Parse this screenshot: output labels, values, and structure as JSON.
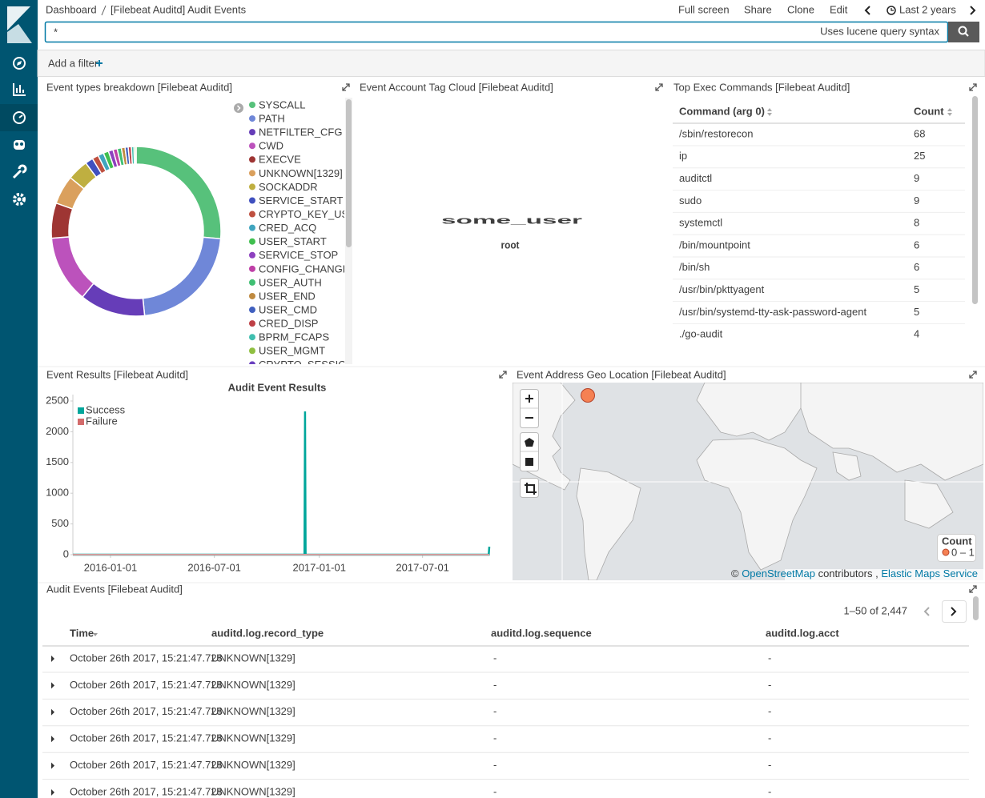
{
  "header": {
    "breadcrumbs": [
      "Dashboard",
      "[Filebeat Auditd] Audit Events"
    ],
    "menu": [
      "Full screen",
      "Share",
      "Clone",
      "Edit"
    ],
    "time_range": "Last 2 years"
  },
  "query": {
    "text": "*",
    "hint": "Uses lucene query syntax"
  },
  "filter_bar": {
    "add_filter": "Add a filter"
  },
  "panels": {
    "event_types": {
      "title": "Event types breakdown [Filebeat Auditd]",
      "chart_data": {
        "type": "pie",
        "donut": true,
        "categories": [
          "SYSCALL",
          "PATH",
          "NETFILTER_CFG",
          "CWD",
          "EXECVE",
          "UNKNOWN[1329]",
          "SOCKADDR",
          "SERVICE_START",
          "CRYPTO_KEY_USER",
          "CRED_ACQ",
          "USER_START",
          "SERVICE_STOP",
          "CONFIG_CHANGE",
          "USER_AUTH",
          "USER_END",
          "USER_CMD",
          "CRED_DISP",
          "BPRM_FCAPS",
          "USER_MGMT",
          "CRYPTO_SESSION"
        ],
        "values": [
          26.4,
          22,
          12.5,
          12.8,
          6.7,
          5.5,
          4,
          1.5,
          1.2,
          1.1,
          1,
          0.9,
          0.8,
          0.8,
          0.7,
          0.6,
          0.6,
          0.5,
          0.3,
          0.1
        ],
        "colors": [
          "#57c17b",
          "#6f87d8",
          "#663db8",
          "#bc52bc",
          "#9e3533",
          "#daa05d",
          "#bfaf40",
          "#4050bf",
          "#bf5040",
          "#40a5bf",
          "#40bf4f",
          "#8d40bf",
          "#bf40a7",
          "#40bf73",
          "#bf8a40",
          "#4060bf",
          "#bf4046",
          "#40bfaf",
          "#8fbf40",
          "#6a40bf"
        ]
      }
    },
    "tag_cloud": {
      "title": "Event Account Tag Cloud [Filebeat Auditd]",
      "tags": [
        "some_user",
        "root"
      ]
    },
    "top_commands": {
      "title": "Top Exec Commands [Filebeat Auditd]",
      "columns": [
        "Command (arg 0)",
        "Count"
      ],
      "rows": [
        [
          "/sbin/restorecon",
          "68"
        ],
        [
          "ip",
          "25"
        ],
        [
          "auditctl",
          "9"
        ],
        [
          "sudo",
          "9"
        ],
        [
          "systemctl",
          "8"
        ],
        [
          "/bin/mountpoint",
          "6"
        ],
        [
          "/bin/sh",
          "6"
        ],
        [
          "/usr/bin/pkttyagent",
          "5"
        ],
        [
          "/usr/bin/systemd-tty-ask-password-agent",
          "5"
        ],
        [
          "./go-audit",
          "4"
        ]
      ]
    },
    "event_results": {
      "title": "Event Results [Filebeat Auditd]",
      "chart_data": {
        "type": "line",
        "title": "Audit Event Results",
        "x": [
          "2015-10-27",
          "2016-12-06",
          "2016-12-07",
          "2016-12-08",
          "2017-10-25",
          "2017-10-26"
        ],
        "series": [
          {
            "name": "Success",
            "color": "#00a69b",
            "values": [
              0,
              0,
              2330,
              0,
              0,
              130
            ]
          },
          {
            "name": "Failure",
            "color": "#d36b6b",
            "values": [
              0,
              0,
              0,
              0,
              0,
              0
            ]
          }
        ],
        "xlim": [
          "2015-10-27",
          "2017-10-26"
        ],
        "xticks": [
          "2016-01-01",
          "2016-07-01",
          "2017-01-01",
          "2017-07-01"
        ],
        "ylim": [
          0,
          2500
        ],
        "yticks": [
          0,
          500,
          1000,
          1500,
          2000,
          2500
        ],
        "legend": "top-left"
      }
    },
    "geo_map": {
      "title": "Event Address Geo Location [Filebeat Auditd]",
      "legend_title": "Count",
      "legend_range": "0 – 1",
      "attribution": [
        "© ",
        "OpenStreetMap",
        " contributors , ",
        "Elastic Maps Service"
      ]
    },
    "audit_events": {
      "title": "Audit Events [Filebeat Auditd]",
      "pagination": "1–50 of 2,447",
      "columns": [
        "Time",
        "auditd.log.record_type",
        "auditd.log.sequence",
        "auditd.log.acct"
      ],
      "rows": [
        [
          "October 26th 2017, 15:21:47.728",
          "UNKNOWN[1329]",
          "-",
          "-"
        ],
        [
          "October 26th 2017, 15:21:47.728",
          "UNKNOWN[1329]",
          "-",
          "-"
        ],
        [
          "October 26th 2017, 15:21:47.728",
          "UNKNOWN[1329]",
          "-",
          "-"
        ],
        [
          "October 26th 2017, 15:21:47.728",
          "UNKNOWN[1329]",
          "-",
          "-"
        ],
        [
          "October 26th 2017, 15:21:47.728",
          "UNKNOWN[1329]",
          "-",
          "-"
        ],
        [
          "October 26th 2017, 15:21:47.728",
          "UNKNOWN[1329]",
          "-",
          "-"
        ]
      ]
    }
  }
}
